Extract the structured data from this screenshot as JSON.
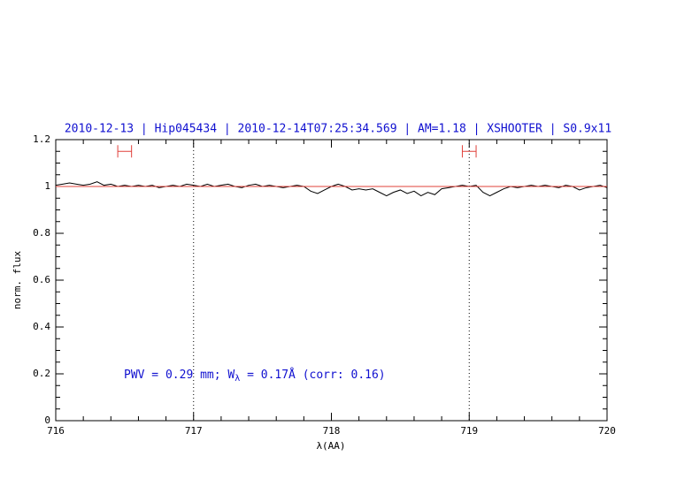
{
  "chart_data": {
    "type": "line",
    "title": "2010-12-13 | Hip045434 | 2010-12-14T07:25:34.569 | AM=1.18 | XSHOOTER | S0.9x11",
    "x_label": "λ(AA)",
    "y_label": "norm. flux",
    "annotation": [
      "PWV = 0.29 mm; W",
      "λ",
      " = 0.17Å (corr: 0.16)"
    ],
    "x": [
      716.0,
      716.05,
      716.1,
      716.15,
      716.2,
      716.25,
      716.3,
      716.35,
      716.4,
      716.45,
      716.5,
      716.55,
      716.6,
      716.65,
      716.7,
      716.75,
      716.8,
      716.85,
      716.9,
      716.95,
      717.0,
      717.05,
      717.1,
      717.15,
      717.2,
      717.25,
      717.3,
      717.35,
      717.4,
      717.45,
      717.5,
      717.55,
      717.6,
      717.65,
      717.7,
      717.75,
      717.8,
      717.85,
      717.9,
      717.95,
      718.0,
      718.05,
      718.1,
      718.15,
      718.2,
      718.25,
      718.3,
      718.35,
      718.4,
      718.45,
      718.5,
      718.55,
      718.6,
      718.65,
      718.7,
      718.75,
      718.8,
      718.85,
      718.9,
      718.95,
      719.0,
      719.05,
      719.1,
      719.15,
      719.2,
      719.25,
      719.3,
      719.35,
      719.4,
      719.45,
      719.5,
      719.55,
      719.6,
      719.65,
      719.7,
      719.75,
      719.8,
      719.85,
      719.9,
      719.95,
      720.0
    ],
    "series": [
      {
        "color": "#000000",
        "values": [
          1.005,
          1.01,
          1.015,
          1.01,
          1.005,
          1.01,
          1.02,
          1.005,
          1.01,
          1.0,
          1.005,
          1.0,
          1.005,
          1.0,
          1.005,
          0.995,
          1.0,
          1.005,
          1.0,
          1.01,
          1.005,
          1.0,
          1.01,
          1.0,
          1.005,
          1.01,
          1.0,
          0.995,
          1.005,
          1.01,
          1.0,
          1.005,
          1.0,
          0.995,
          1.0,
          1.005,
          1.0,
          0.98,
          0.97,
          0.985,
          1.0,
          1.01,
          1.0,
          0.985,
          0.99,
          0.985,
          0.99,
          0.975,
          0.96,
          0.975,
          0.985,
          0.97,
          0.98,
          0.96,
          0.975,
          0.965,
          0.99,
          0.995,
          1.0,
          1.005,
          1.0,
          1.005,
          0.975,
          0.96,
          0.975,
          0.99,
          1.0,
          0.995,
          1.0,
          1.005,
          1.0,
          1.005,
          1.0,
          0.995,
          1.005,
          1.0,
          0.985,
          0.995,
          1.0,
          1.005,
          0.995
        ]
      }
    ],
    "reference_line": {
      "value": 1,
      "color": "#e0403a"
    },
    "vlines": [
      717,
      719
    ],
    "intervals": [
      {
        "x": [
          716.45,
          716.55
        ],
        "y": 1.15,
        "color": "#e0403a"
      },
      {
        "x": [
          718.95,
          719.05
        ],
        "y": 1.15,
        "color": "#e0403a"
      }
    ],
    "xlim": [
      716,
      720
    ],
    "ylim": [
      0,
      1.2
    ],
    "xticks": [
      716,
      717,
      718,
      719,
      720
    ],
    "yticks": [
      0,
      0.2,
      0.4,
      0.6,
      0.8,
      1,
      1.2
    ],
    "xminorticks": [
      716.2,
      716.4,
      716.6,
      716.8,
      717.2,
      717.4,
      717.6,
      717.8,
      718.2,
      718.4,
      718.6,
      718.8,
      719.2,
      719.4,
      719.6,
      719.8
    ],
    "yminorticks": [
      0.05,
      0.1,
      0.15,
      0.25,
      0.3,
      0.35,
      0.45,
      0.5,
      0.55,
      0.65,
      0.7,
      0.75,
      0.85,
      0.9,
      0.95,
      1.05,
      1.1,
      1.15
    ],
    "text_color": "#1010d0"
  }
}
